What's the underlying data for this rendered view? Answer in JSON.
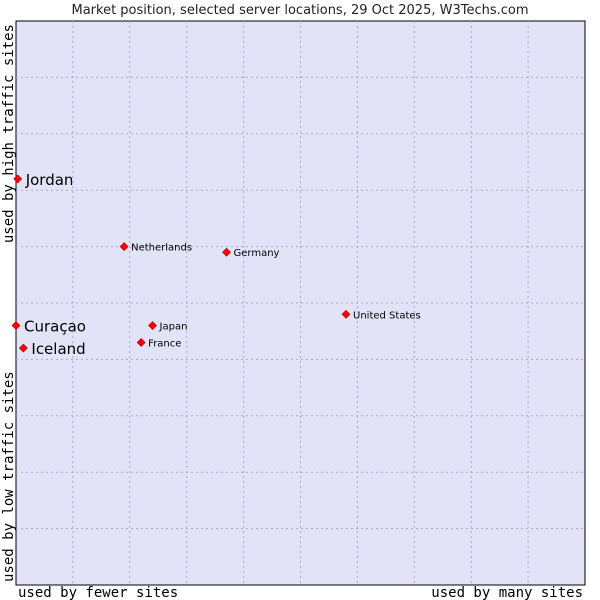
{
  "chart_data": {
    "type": "scatter",
    "title": "Market position, selected server locations, 29 Oct 2025, W3Techs.com",
    "xlabel_left": "used by fewer sites",
    "xlabel_right": "used by many sites",
    "ylabel_bottom": "used by low traffic sites",
    "ylabel_top": "used by high traffic sites",
    "xlim": [
      0,
      10
    ],
    "ylim": [
      0,
      10
    ],
    "grid": true,
    "colors": {
      "plot_background": "#e3e3f8",
      "grid": "#a8a8c8",
      "marker": "#ff0000",
      "marker_edge": "#aa0000"
    },
    "points": [
      {
        "name": "Jordan",
        "x": 0.03,
        "y": 7.2,
        "label_size": "large"
      },
      {
        "name": "Netherlands",
        "x": 1.9,
        "y": 6.0,
        "label_size": "small"
      },
      {
        "name": "Germany",
        "x": 3.7,
        "y": 5.9,
        "label_size": "small"
      },
      {
        "name": "United States",
        "x": 5.8,
        "y": 4.8,
        "label_size": "small"
      },
      {
        "name": "Curaçao",
        "x": 0.0,
        "y": 4.6,
        "label_size": "large"
      },
      {
        "name": "Japan",
        "x": 2.4,
        "y": 4.6,
        "label_size": "small"
      },
      {
        "name": "France",
        "x": 2.2,
        "y": 4.3,
        "label_size": "small"
      },
      {
        "name": "Iceland",
        "x": 0.13,
        "y": 4.2,
        "label_size": "large"
      }
    ]
  }
}
